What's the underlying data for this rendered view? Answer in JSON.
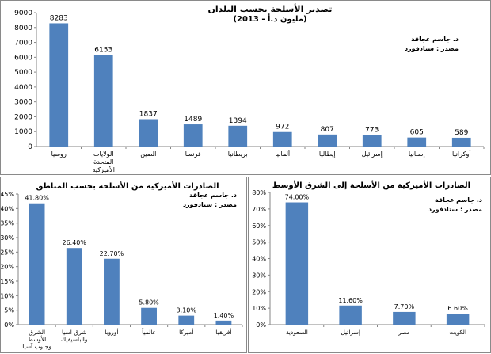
{
  "chart_data": [
    {
      "id": "top",
      "type": "bar",
      "title": "تصدير الأسلحة بحسب البلدان",
      "subtitle": "(مليون د.أ - 2013)",
      "source_author": "د. جاسم عجاقة",
      "source_ref": "مصدر : ستادفورد",
      "categories": [
        "روسيا",
        "الولايات المتحدة الأميركية",
        "الصين",
        "فرنسا",
        "بريطانيا",
        "ألمانيا",
        "إيطاليا",
        "إسرائيل",
        "إسبانيا",
        "أوكرانيا"
      ],
      "values": [
        8283,
        6153,
        1837,
        1489,
        1394,
        972,
        807,
        773,
        605,
        589
      ],
      "value_labels": [
        "8283",
        "6153",
        "1837",
        "1489",
        "1394",
        "972",
        "807",
        "773",
        "605",
        "589"
      ],
      "ylim": [
        0,
        9000
      ],
      "yticks": [
        "0",
        "1000",
        "2000",
        "3000",
        "4000",
        "5000",
        "6000",
        "7000",
        "8000",
        "9000"
      ],
      "color": "#4f81bd",
      "grid": false,
      "legend": "none"
    },
    {
      "id": "bl",
      "type": "bar",
      "title": "الصادرات الأميركية من الأسلحة بحسب المناطق",
      "source_author": "د. جاسم عجاقة",
      "source_ref": "مصدر : ستادفورد",
      "categories": [
        "الشرق الأوسط وجنوب آسيا",
        "شرق آسيا والباسيفيك",
        "أوروبا",
        "عالمياً",
        "أميركا",
        "أفريقيا"
      ],
      "values": [
        41.8,
        26.4,
        22.7,
        5.8,
        3.1,
        1.4
      ],
      "value_labels": [
        "41.80%",
        "26.40%",
        "22.70%",
        "5.80%",
        "3.10%",
        "1.40%"
      ],
      "ylim": [
        0,
        45
      ],
      "yticks": [
        "0%",
        "5%",
        "10%",
        "15%",
        "20%",
        "25%",
        "30%",
        "35%",
        "40%",
        "45%"
      ],
      "color": "#4f81bd",
      "grid": false,
      "legend": "none"
    },
    {
      "id": "br",
      "type": "bar",
      "title": "الصادرات الأميركية من الأسلحة إلى الشرق الأوسط",
      "source_author": "د. جاسم عجاقة",
      "source_ref": "مصدر : ستادفورد",
      "categories": [
        "السعودية",
        "إسرائيل",
        "مصر",
        "الكويت"
      ],
      "values": [
        74.0,
        11.6,
        7.7,
        6.6
      ],
      "value_labels": [
        "74.00%",
        "11.60%",
        "7.70%",
        "6.60%"
      ],
      "ylim": [
        0,
        80
      ],
      "yticks": [
        "0%",
        "10%",
        "20%",
        "30%",
        "40%",
        "50%",
        "60%",
        "70%",
        "80%"
      ],
      "color": "#4f81bd",
      "grid": false,
      "legend": "none"
    }
  ]
}
